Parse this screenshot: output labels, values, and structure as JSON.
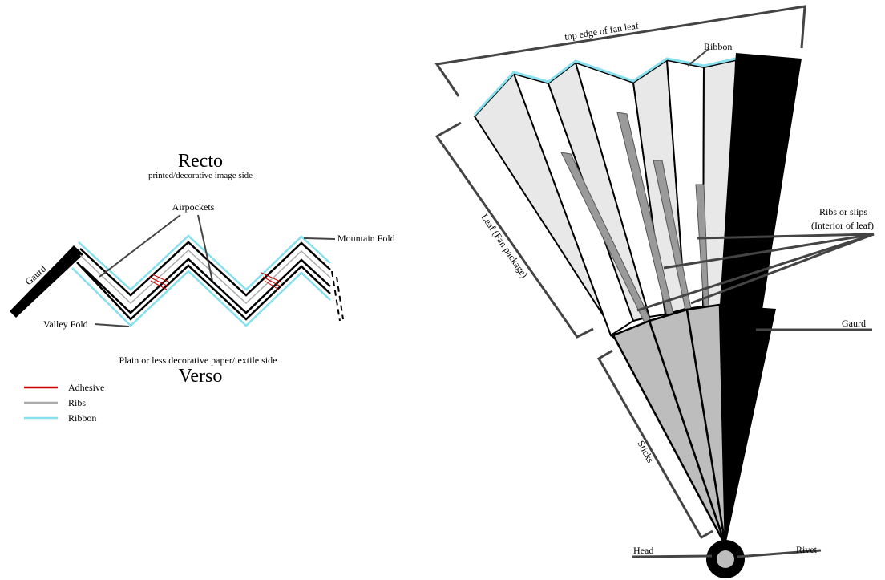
{
  "cross_section": {
    "title": "Recto",
    "subtitle": "printed/decorative image side",
    "bottom_caption": "Plain or less decorative paper/textile side",
    "bottom_title": "Verso",
    "labels": {
      "airpockets": "Airpockets",
      "mountain_fold": "Mountain Fold",
      "valley_fold": "Valley Fold",
      "guard": "Gaurd"
    },
    "legend": [
      {
        "label": "Adhesive",
        "color": "#cc0000"
      },
      {
        "label": "Ribs",
        "color": "#aaaaaa"
      },
      {
        "label": "Ribbon",
        "color": "#88e0ee"
      }
    ]
  },
  "fan": {
    "labels": {
      "top_edge": "top edge of fan leaf",
      "ribbon": "Ribbon",
      "ribs": "Ribs or slips",
      "ribs_sub": "(Interior of leaf)",
      "leaf": "Leaf (Fan package)",
      "guard": "Gaurd",
      "sticks": "Sticks",
      "head": "Head",
      "rivet": "Rivet"
    },
    "colors": {
      "guard": "#000000",
      "leaf_light": "#e8e8e8",
      "stick": "#bdbdbd",
      "rib": "#9a9a9a",
      "ribbon": "#88e0ee"
    }
  }
}
